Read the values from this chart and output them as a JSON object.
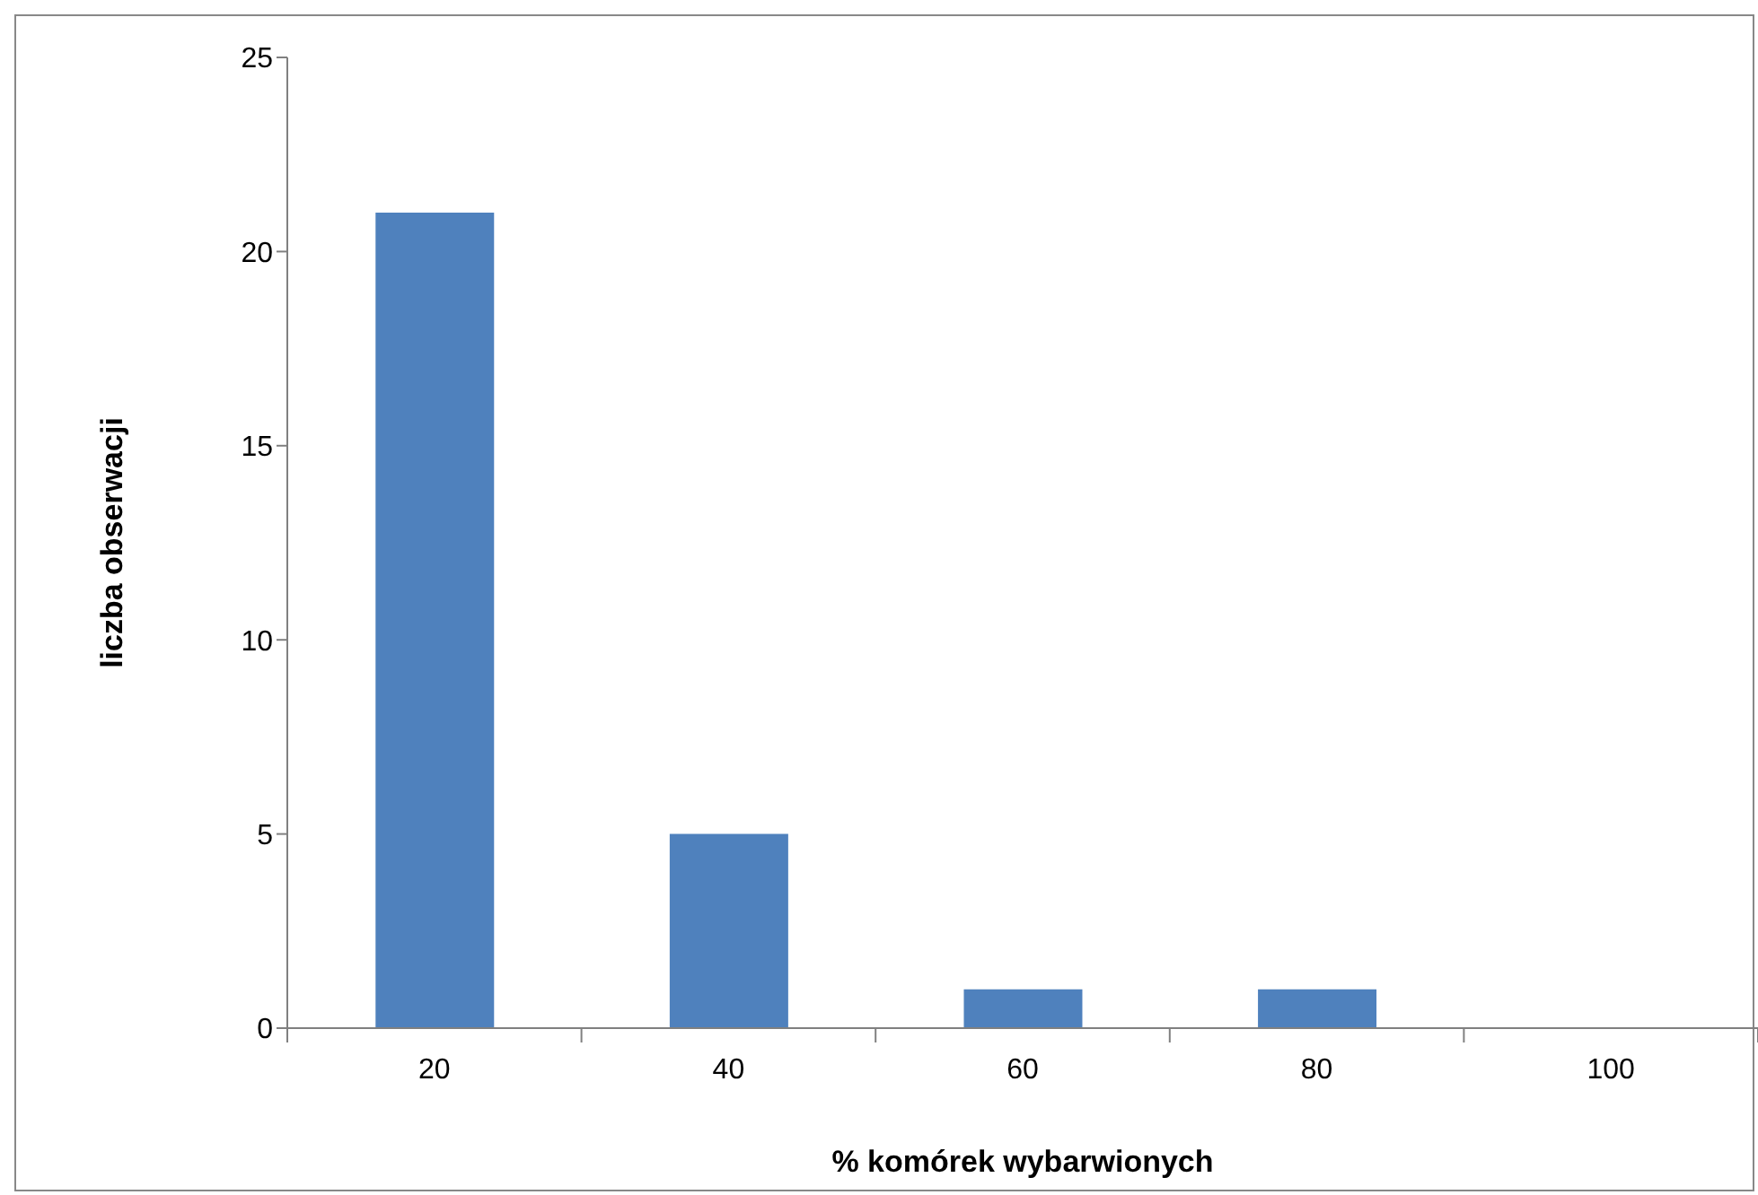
{
  "chart_data": {
    "type": "bar",
    "xlabel": "% komórek wybarwionych",
    "ylabel": "liczba obserwacji",
    "categories": [
      "20",
      "40",
      "60",
      "80",
      "100"
    ],
    "values": [
      21,
      5,
      1,
      1,
      0
    ],
    "color": "#4f81bd",
    "ylim": [
      0,
      25
    ],
    "yticks": [
      0,
      5,
      10,
      15,
      20,
      25
    ]
  }
}
